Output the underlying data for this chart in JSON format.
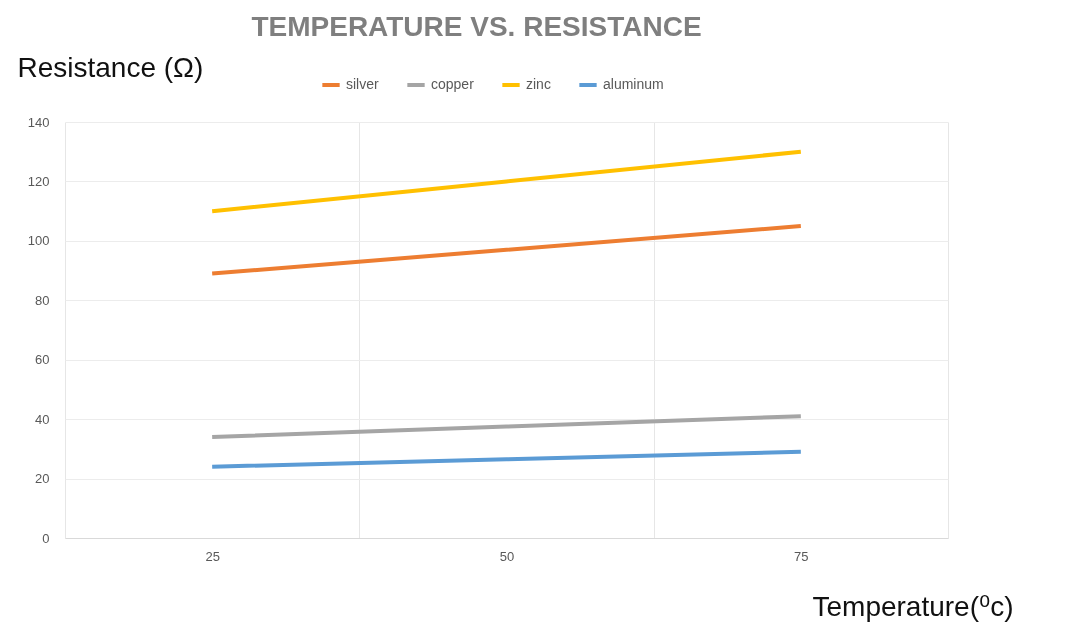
{
  "chart_data": {
    "type": "line",
    "title": "TEMPERATURE VS. RESISTANCE",
    "xlabel": "Temperature(⁰c)",
    "ylabel": "Resistance (Ω)",
    "categories": [
      "25",
      "50",
      "75"
    ],
    "series": [
      {
        "name": "silver",
        "color": "#ed7d31",
        "values": [
          89,
          97,
          105
        ]
      },
      {
        "name": "copper",
        "color": "#a5a5a5",
        "values": [
          34,
          37.5,
          41
        ]
      },
      {
        "name": "zinc",
        "color": "#ffc000",
        "values": [
          110,
          120,
          130
        ]
      },
      {
        "name": "aluminum",
        "color": "#5b9bd5",
        "values": [
          24,
          26.5,
          29
        ]
      }
    ],
    "ylim": [
      0,
      140
    ],
    "yticks": [
      0,
      20,
      40,
      60,
      80,
      100,
      120,
      140
    ],
    "grid": true,
    "legend": "top",
    "marker": "none",
    "line_style": "solid"
  }
}
